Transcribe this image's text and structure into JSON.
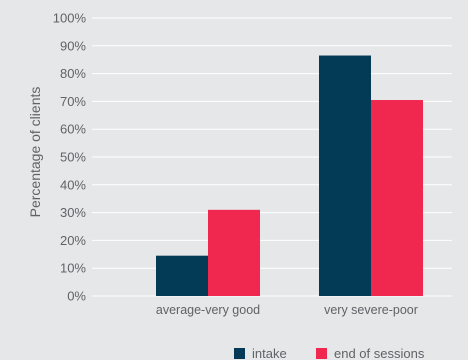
{
  "chart_data": {
    "type": "bar",
    "categories": [
      "average-very good",
      "very severe-poor"
    ],
    "series": [
      {
        "name": "intake",
        "values": [
          14.5,
          86.5
        ],
        "color": "#033a55"
      },
      {
        "name": "end of sessions",
        "values": [
          31,
          70.5
        ],
        "color": "#f0284f"
      }
    ],
    "ylabel": "Percentage of clients",
    "xlabel": "",
    "ylim": [
      0,
      100
    ],
    "yticks": [
      "0%",
      "10%",
      "20%",
      "30%",
      "40%",
      "50%",
      "60%",
      "70%",
      "80%",
      "90%",
      "100%"
    ],
    "grid": true,
    "legend_position": "bottom-right"
  },
  "colors": {
    "background": "#e6e7e8",
    "gridline": "#ffffff",
    "text": "#5f6368"
  }
}
